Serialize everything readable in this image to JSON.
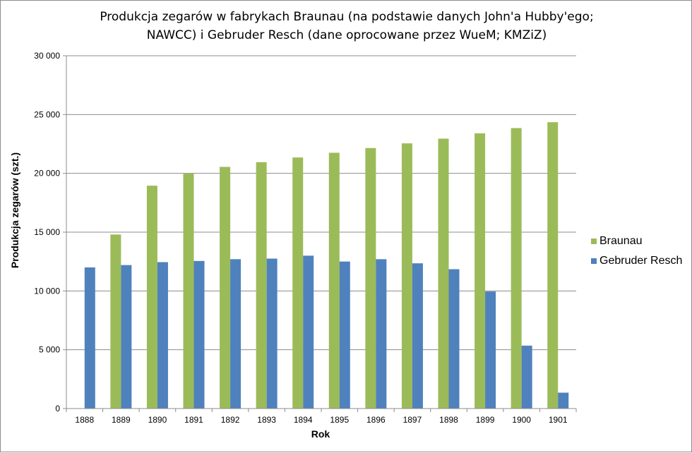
{
  "chart_data": {
    "type": "bar",
    "title_lines": [
      "Produkcja zegarów w fabrykach Braunau (na podstawie danych John'a Hubby'ego;",
      "NAWCC) i Gebruder Resch (dane oprocowane przez WueM; KMZiZ)"
    ],
    "xlabel": "Rok",
    "ylabel": "Produkcja zegarów (szt.)",
    "categories": [
      "1888",
      "1889",
      "1890",
      "1891",
      "1892",
      "1893",
      "1894",
      "1895",
      "1896",
      "1897",
      "1898",
      "1899",
      "1900",
      "1901"
    ],
    "series": [
      {
        "name": "Braunau",
        "color": "#9bbb59",
        "values": [
          0,
          14800,
          18950,
          20000,
          20550,
          20950,
          21350,
          21750,
          22150,
          22550,
          22950,
          23400,
          23850,
          24350
        ]
      },
      {
        "name": "Gebruder Resch",
        "color": "#4f81bd",
        "values": [
          12000,
          12200,
          12450,
          12550,
          12700,
          12750,
          13000,
          12500,
          12700,
          12350,
          11850,
          9950,
          5350,
          1350
        ]
      }
    ],
    "ylim": [
      0,
      30000
    ],
    "yticks": [
      0,
      5000,
      10000,
      15000,
      20000,
      25000,
      30000
    ],
    "ytick_labels": [
      "0",
      "5 000",
      "10 000",
      "15 000",
      "20 000",
      "25 000",
      "30 000"
    ],
    "grid": true,
    "legend_position": "right"
  }
}
